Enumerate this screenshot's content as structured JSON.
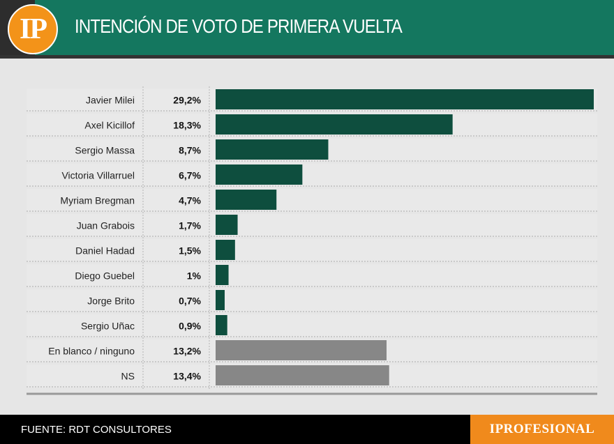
{
  "header": {
    "logo_text": "IP",
    "title": "INTENCIÓN DE VOTO DE PRIMERA VUELTA"
  },
  "colors": {
    "header_bg": "#14775f",
    "bar_candidate": "#0e4e3e",
    "bar_other": "#878787",
    "row_bg": "#e9e9e9",
    "logo_bg": "#f39319",
    "brand_bg": "#f08a1c"
  },
  "chart_data": {
    "type": "bar",
    "orientation": "horizontal",
    "title": "INTENCIÓN DE VOTO DE PRIMERA VUELTA",
    "xlabel": "",
    "ylabel": "",
    "xlim": [
      0,
      29.2
    ],
    "grid": false,
    "categories": [
      "Javier Milei",
      "Axel Kicillof",
      "Sergio Massa",
      "Victoria Villarruel",
      "Myriam Bregman",
      "Juan Grabois",
      "Daniel Hadad",
      "Diego Guebel",
      "Jorge Brito",
      "Sergio Uñac",
      "En blanco / ninguno",
      "NS"
    ],
    "values": [
      29.2,
      18.3,
      8.7,
      6.7,
      4.7,
      1.7,
      1.5,
      1,
      0.7,
      0.9,
      13.2,
      13.4
    ],
    "labels": [
      "29,2%",
      "18,3%",
      "8,7%",
      "6,7%",
      "4,7%",
      "1,7%",
      "1,5%",
      "1%",
      "0,7%",
      "0,9%",
      "13,2%",
      "13,4%"
    ],
    "bar_group": [
      "candidate",
      "candidate",
      "candidate",
      "candidate",
      "candidate",
      "candidate",
      "candidate",
      "candidate",
      "candidate",
      "candidate",
      "other",
      "other"
    ]
  },
  "footer": {
    "source": "FUENTE: RDT CONSULTORES",
    "brand": "IPROFESIONAL"
  }
}
